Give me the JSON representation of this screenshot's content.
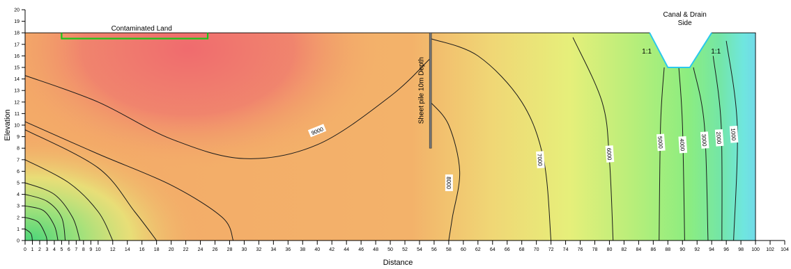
{
  "chart_data": {
    "type": "contour",
    "title": "",
    "xlabel": "Distance",
    "ylabel": "Elevation",
    "xlim": [
      0,
      104
    ],
    "ylim": [
      0,
      20
    ],
    "x_ticks": [
      0,
      1,
      2,
      3,
      4,
      5,
      6,
      7,
      8,
      9,
      10,
      12,
      14,
      16,
      18,
      20,
      22,
      24,
      26,
      28,
      30,
      32,
      34,
      36,
      38,
      40,
      42,
      44,
      46,
      48,
      50,
      52,
      54,
      56,
      58,
      60,
      62,
      64,
      66,
      68,
      70,
      72,
      74,
      76,
      78,
      80,
      82,
      84,
      86,
      88,
      90,
      92,
      94,
      96,
      98,
      100,
      102,
      104
    ],
    "y_ticks": [
      0,
      1,
      2,
      3,
      4,
      5,
      6,
      7,
      8,
      9,
      10,
      11,
      12,
      13,
      14,
      15,
      16,
      17,
      18,
      19,
      20
    ],
    "ground_surface": [
      [
        0,
        18
      ],
      [
        85.5,
        18
      ],
      [
        88,
        15
      ],
      [
        91,
        15
      ],
      [
        94,
        18
      ],
      [
        100,
        18
      ]
    ],
    "contaminated_land": {
      "label": "Contaminated Land",
      "x_range": [
        5,
        25
      ],
      "y": [
        17.5,
        18
      ]
    },
    "sheet_pile": {
      "label": "Sheet pile 10m Depth",
      "x": 55.5,
      "y_range": [
        8,
        18
      ]
    },
    "canal": {
      "label": "Canal & Drain Side",
      "bank_slope_labels": [
        "1:1",
        "1:1"
      ],
      "bottom_elevation": 15,
      "x_range": [
        85.5,
        94
      ]
    },
    "contour_labels": [
      {
        "text": "9000",
        "x": 40,
        "y": 9.5
      },
      {
        "text": "8000",
        "x": 58,
        "y": 5
      },
      {
        "text": "7000",
        "x": 70.5,
        "y": 7
      },
      {
        "text": "6000",
        "x": 80,
        "y": 7.5
      },
      {
        "text": "5000",
        "x": 87,
        "y": 8.5
      },
      {
        "text": "4000",
        "x": 90,
        "y": 8.3
      },
      {
        "text": "3000",
        "x": 93,
        "y": 8.7
      },
      {
        "text": "2000",
        "x": 95,
        "y": 8.9
      },
      {
        "text": "1000",
        "x": 97,
        "y": 9.2
      }
    ],
    "contours": [
      {
        "level": 9000,
        "points": [
          [
            0,
            14.3
          ],
          [
            10,
            12
          ],
          [
            20,
            8.8
          ],
          [
            30,
            7.1
          ],
          [
            40,
            8.3
          ],
          [
            50,
            12.5
          ],
          [
            55.5,
            15.8
          ]
        ]
      },
      {
        "level": 8000,
        "points": [
          [
            55.5,
            12
          ],
          [
            58,
            10
          ],
          [
            59.5,
            6
          ],
          [
            58.5,
            2
          ],
          [
            58,
            0
          ]
        ]
      },
      {
        "level": 7000,
        "points": [
          [
            55.5,
            17.5
          ],
          [
            62,
            16
          ],
          [
            68,
            12
          ],
          [
            71,
            7
          ],
          [
            72,
            0
          ]
        ]
      },
      {
        "level": 6000,
        "points": [
          [
            75,
            17.6
          ],
          [
            79,
            12
          ],
          [
            80,
            7
          ],
          [
            80.5,
            0
          ]
        ]
      },
      {
        "level": 5000,
        "points": [
          [
            87.5,
            15
          ],
          [
            87,
            10
          ],
          [
            86.8,
            0
          ]
        ]
      },
      {
        "level": 4000,
        "points": [
          [
            89.5,
            15
          ],
          [
            90,
            10
          ],
          [
            90.3,
            0
          ]
        ]
      },
      {
        "level": 3000,
        "points": [
          [
            91.5,
            15
          ],
          [
            93,
            10
          ],
          [
            93.5,
            0
          ]
        ]
      },
      {
        "level": 2000,
        "points": [
          [
            94.2,
            16
          ],
          [
            95.3,
            10
          ],
          [
            95.4,
            0
          ]
        ]
      },
      {
        "level": 1000,
        "points": [
          [
            96,
            17.3
          ],
          [
            97.5,
            10
          ],
          [
            97,
            0
          ]
        ]
      },
      {
        "level": null,
        "points": [
          [
            0,
            10.3
          ],
          [
            10,
            7.5
          ],
          [
            20,
            4.8
          ],
          [
            27,
            2
          ],
          [
            28.5,
            0
          ]
        ]
      },
      {
        "level": null,
        "points": [
          [
            0,
            9.6
          ],
          [
            10,
            6.3
          ],
          [
            15,
            2.5
          ],
          [
            18,
            0
          ]
        ]
      },
      {
        "level": null,
        "points": [
          [
            0,
            7
          ],
          [
            6,
            5
          ],
          [
            10,
            2.5
          ],
          [
            12,
            0
          ]
        ]
      },
      {
        "level": null,
        "points": [
          [
            0,
            5
          ],
          [
            4,
            4
          ],
          [
            6.5,
            2
          ],
          [
            7.5,
            0
          ]
        ]
      },
      {
        "level": null,
        "points": [
          [
            0,
            4
          ],
          [
            3,
            3.4
          ],
          [
            5,
            2
          ],
          [
            5.5,
            0
          ]
        ]
      },
      {
        "level": null,
        "points": [
          [
            0,
            3
          ],
          [
            2.5,
            2.6
          ],
          [
            4,
            1.3
          ],
          [
            4.5,
            0
          ]
        ]
      },
      {
        "level": null,
        "points": [
          [
            0,
            2
          ],
          [
            1.8,
            1.6
          ],
          [
            2.8,
            0.5
          ],
          [
            3,
            0
          ]
        ]
      },
      {
        "level": null,
        "points": [
          [
            0,
            1
          ],
          [
            0.8,
            0.6
          ],
          [
            1,
            0
          ]
        ]
      }
    ],
    "colors": {
      "hot": "#f07070",
      "warm": "#f3b36d",
      "mid": "#edf07a",
      "cool": "#7de77e",
      "cold": "#5fb5ef",
      "ground_line": "#19c51b",
      "canal_line": "#29c8ec"
    }
  }
}
